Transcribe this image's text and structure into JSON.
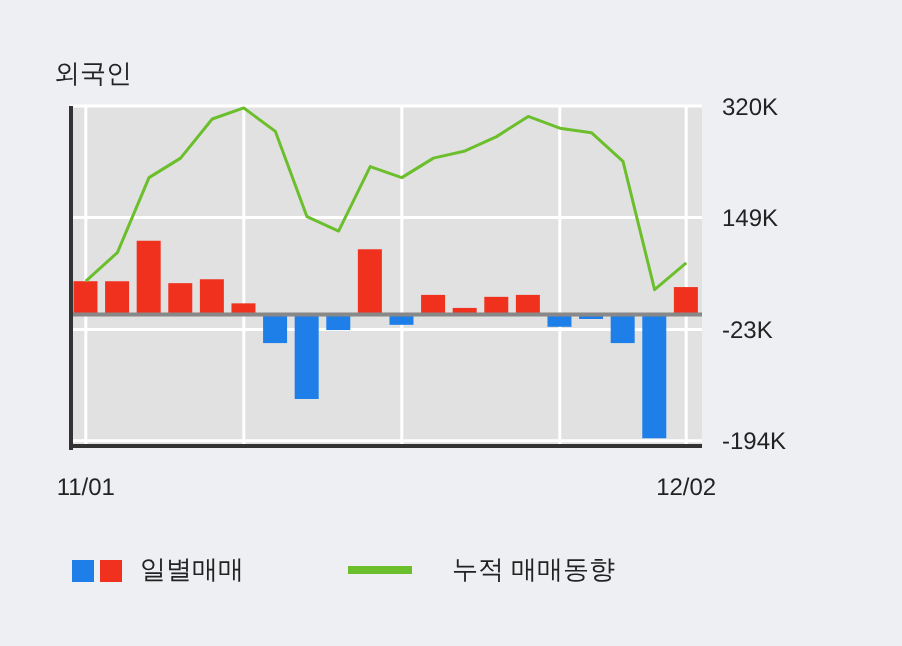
{
  "chart_data": {
    "type": "bar",
    "title": "외국인",
    "categories": [
      "11/01",
      null,
      null,
      null,
      null,
      null,
      null,
      null,
      null,
      null,
      null,
      null,
      null,
      null,
      null,
      null,
      null,
      null,
      null,
      "12/02"
    ],
    "series": [
      {
        "name": "일별매매",
        "colors": [
          "#f0311e",
          "#f0311e",
          "#f0311e",
          "#f0311e",
          "#f0311e",
          "#f0311e",
          "#1f7fe8",
          "#1f7fe8",
          "#1f7fe8",
          "#f0311e",
          "#1f7fe8",
          "#f0311e",
          "#f0311e",
          "#f0311e",
          "#f0311e",
          "#1f7fe8",
          "#1f7fe8",
          "#1f7fe8",
          "#1f7fe8",
          "#f0311e"
        ],
        "values": [
          51,
          51,
          113,
          48,
          54,
          17,
          -44,
          -130,
          -24,
          100,
          -16,
          30,
          10,
          27,
          30,
          -19,
          -7,
          -44,
          -190,
          42
        ]
      },
      {
        "name": "누적 매매동향",
        "type": "line",
        "color": "#6cbf2c",
        "values": [
          51,
          95,
          210,
          240,
          300,
          317,
          281,
          150,
          128,
          227,
          210,
          240,
          251,
          273,
          304,
          286,
          279,
          235,
          38,
          79
        ]
      }
    ],
    "ylim": [
      -202,
      320
    ],
    "yticks": [
      {
        "value": 320,
        "label": "320K"
      },
      {
        "value": 149,
        "label": "149K"
      },
      {
        "value": -23,
        "label": "-23K"
      },
      {
        "value": -194,
        "label": "-194K"
      }
    ],
    "grid": true,
    "legend": "bottom"
  }
}
